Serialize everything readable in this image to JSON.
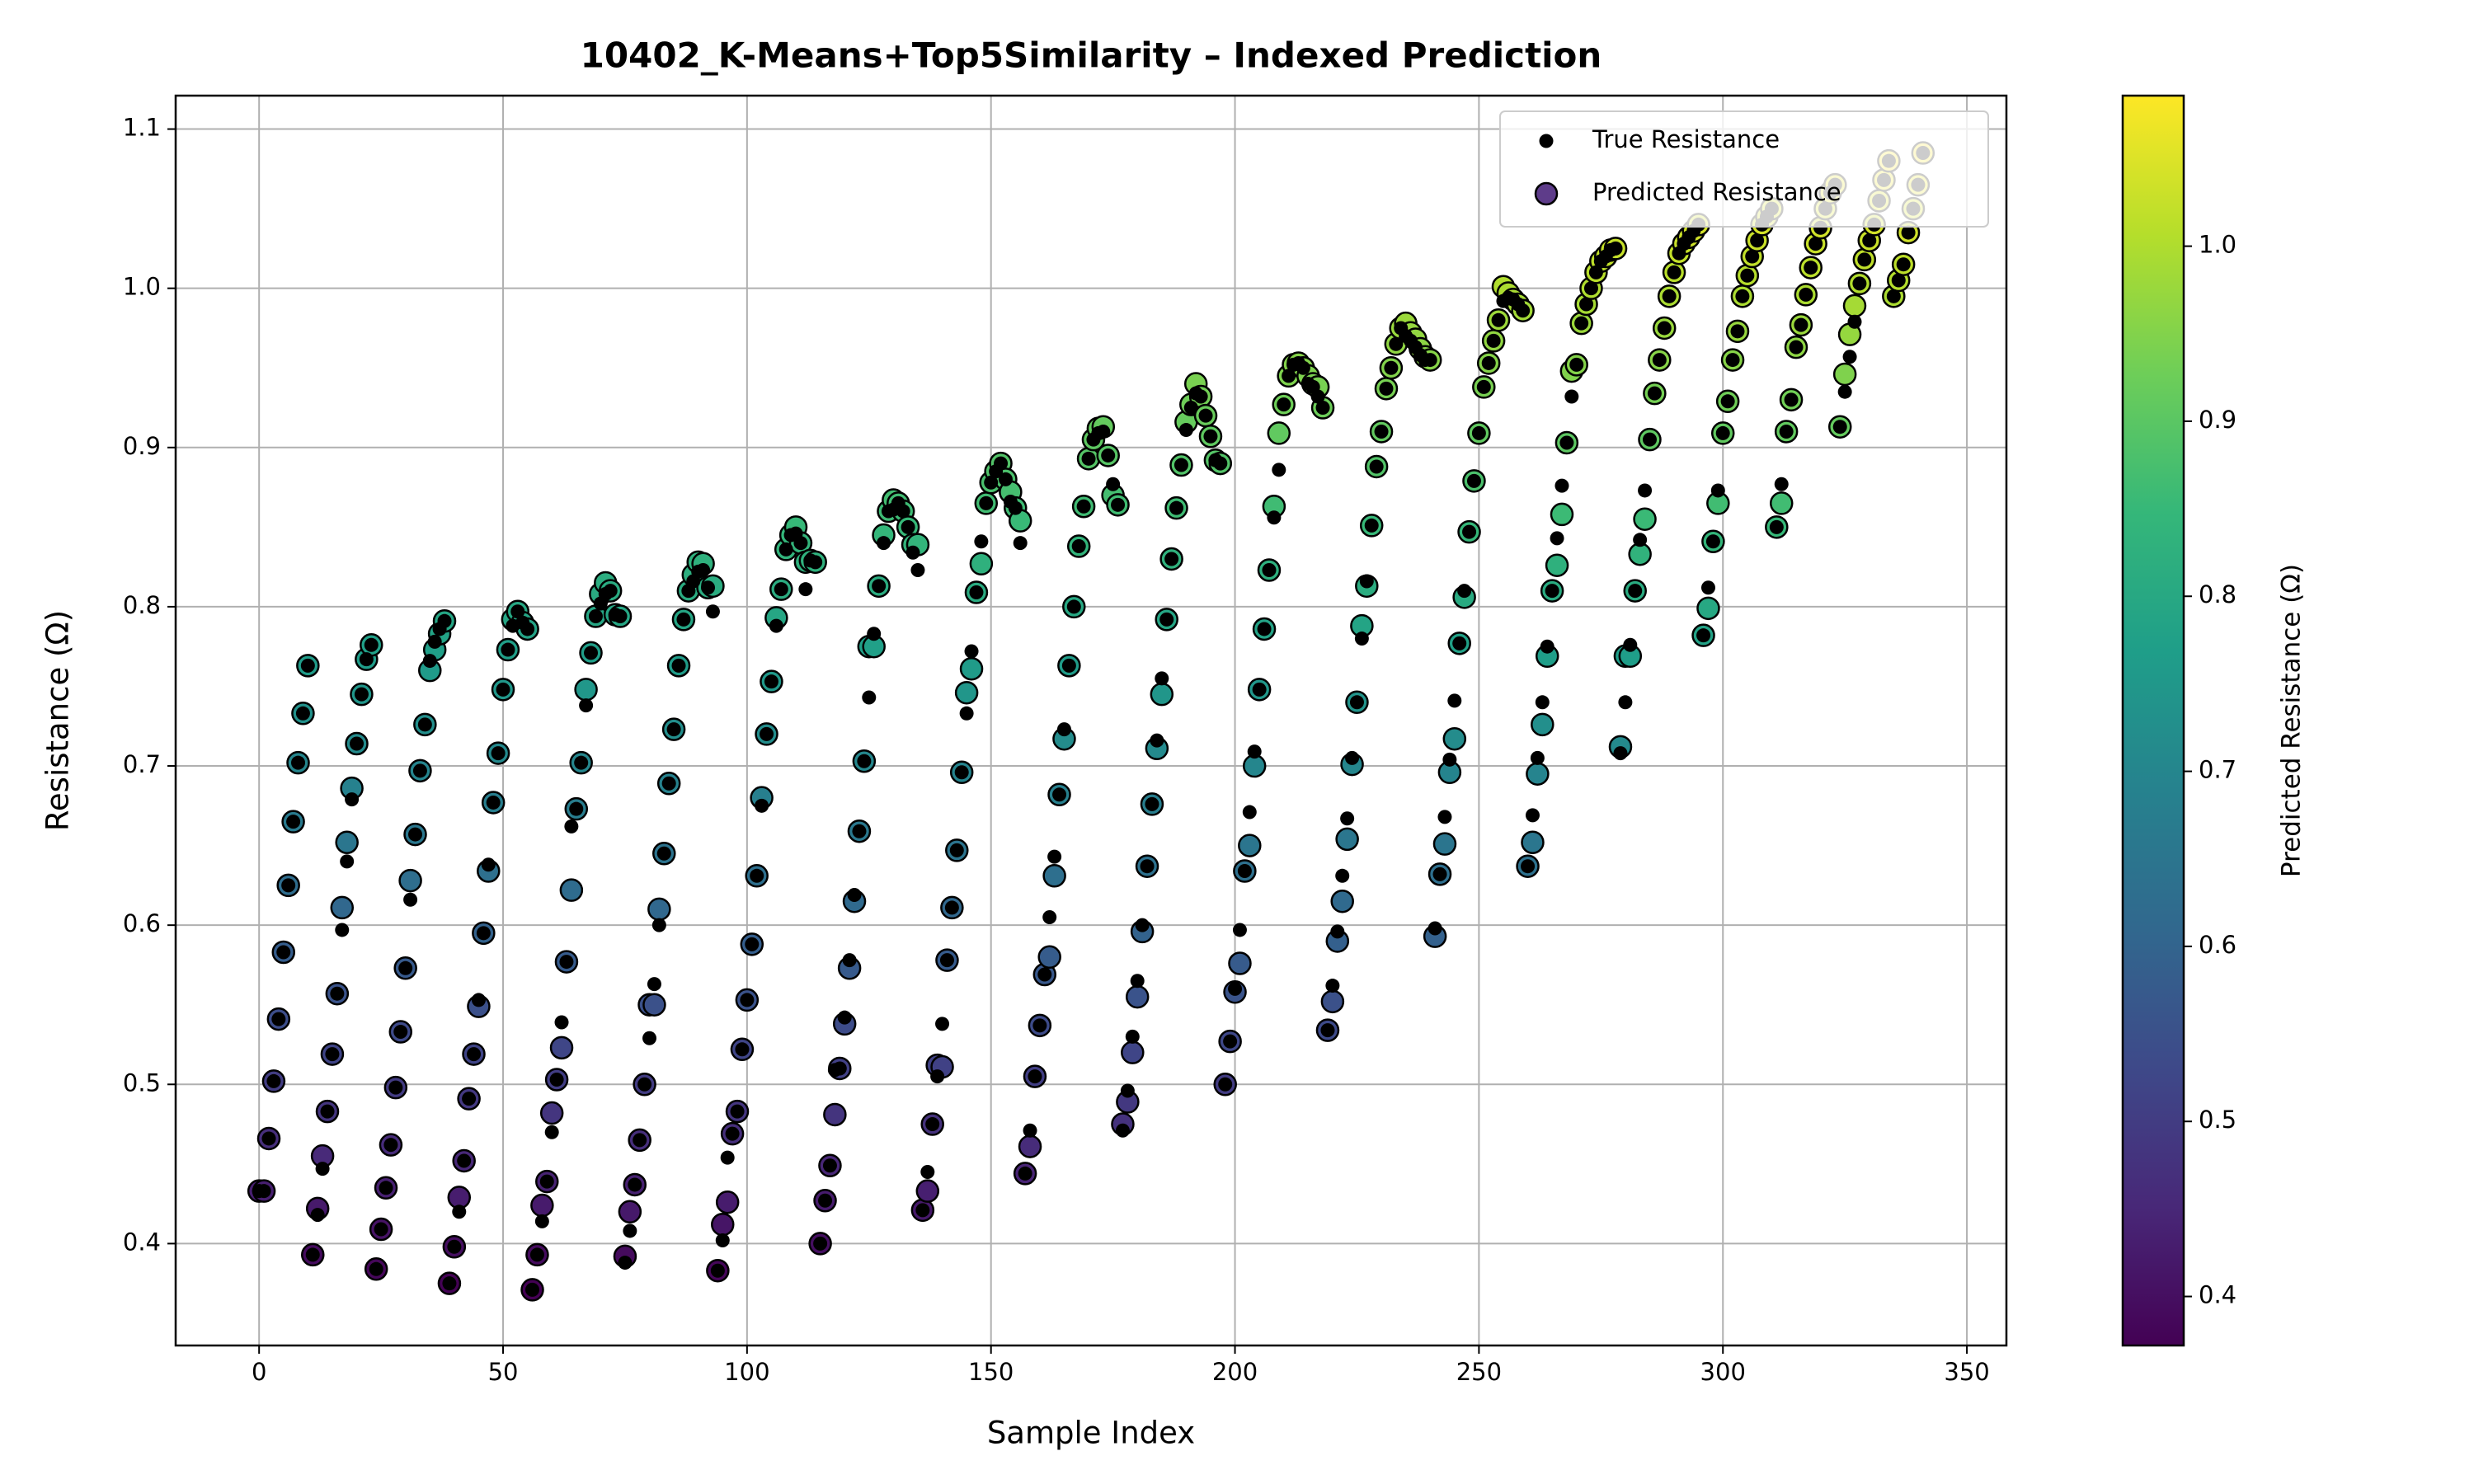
{
  "chart_data": {
    "type": "scatter",
    "title": "10402_K-Means+Top5Similarity – Indexed Prediction",
    "x_label": "Sample Index",
    "y_label": "Resistance (Ω)",
    "colorbar_label": "Predicted Resistance (Ω)",
    "colormap": "viridis",
    "clim": [
      0.372,
      1.086
    ],
    "cticks": [
      0.4,
      0.5,
      0.6,
      0.7,
      0.8,
      0.9,
      {
        "value": 1,
        "label": "1.0"
      }
    ],
    "xlim": [
      -17.1,
      358.1
    ],
    "ylim": [
      0.336,
      1.121
    ],
    "xticks": [
      0,
      50,
      100,
      150,
      200,
      250,
      300,
      350
    ],
    "yticks": [
      0.4,
      0.5,
      0.6,
      0.7,
      0.8,
      0.9,
      {
        "value": 1,
        "label": "1.0"
      },
      1.1
    ],
    "grid": true,
    "legend": "upper right",
    "x": [
      0,
      1,
      2,
      3,
      4,
      5,
      6,
      7,
      8,
      9,
      10,
      11,
      12,
      13,
      14,
      15,
      16,
      17,
      18,
      19,
      20,
      21,
      22,
      23,
      24,
      25,
      26,
      27,
      28,
      29,
      30,
      31,
      32,
      33,
      34,
      35,
      36,
      37,
      38,
      39,
      40,
      41,
      42,
      43,
      44,
      45,
      46,
      47,
      48,
      49,
      50,
      51,
      52,
      53,
      54,
      55,
      56,
      57,
      58,
      59,
      60,
      61,
      62,
      63,
      64,
      65,
      66,
      67,
      68,
      69,
      70,
      71,
      72,
      73,
      74,
      75,
      76,
      77,
      78,
      79,
      80,
      81,
      82,
      83,
      84,
      85,
      86,
      87,
      88,
      89,
      90,
      91,
      92,
      93,
      94,
      95,
      96,
      97,
      98,
      99,
      100,
      101,
      102,
      103,
      104,
      105,
      106,
      107,
      108,
      109,
      110,
      111,
      112,
      113,
      114,
      115,
      116,
      117,
      118,
      119,
      120,
      121,
      122,
      123,
      124,
      125,
      126,
      127,
      128,
      129,
      130,
      131,
      132,
      133,
      134,
      135,
      136,
      137,
      138,
      139,
      140,
      141,
      142,
      143,
      144,
      145,
      146,
      147,
      148,
      149,
      150,
      151,
      152,
      153,
      154,
      155,
      156,
      157,
      158,
      159,
      160,
      161,
      162,
      163,
      164,
      165,
      166,
      167,
      168,
      169,
      170,
      171,
      172,
      173,
      174,
      175,
      176,
      177,
      178,
      179,
      180,
      181,
      182,
      183,
      184,
      185,
      186,
      187,
      188,
      189,
      190,
      191,
      192,
      193,
      194,
      195,
      196,
      197,
      198,
      199,
      200,
      201,
      202,
      203,
      204,
      205,
      206,
      207,
      208,
      209,
      210,
      211,
      212,
      213,
      214,
      215,
      216,
      217,
      218,
      219,
      220,
      221,
      222,
      223,
      224,
      225,
      226,
      227,
      228,
      229,
      230,
      231,
      232,
      233,
      234,
      235,
      236,
      237,
      238,
      239,
      240,
      241,
      242,
      243,
      244,
      245,
      246,
      247,
      248,
      249,
      250,
      251,
      252,
      253,
      254,
      255,
      256,
      257,
      258,
      259,
      260,
      261,
      262,
      263,
      264,
      265,
      266,
      267,
      268,
      269,
      270,
      271,
      272,
      273,
      274,
      275,
      276,
      277,
      278,
      279,
      280,
      281,
      282,
      283,
      284,
      285,
      286,
      287,
      288,
      289,
      290,
      291,
      292,
      293,
      294,
      295,
      296,
      297,
      298,
      299,
      300,
      301,
      302,
      303,
      304,
      305,
      306,
      307,
      308,
      309,
      310,
      311,
      312,
      313,
      314,
      315,
      316,
      317,
      318,
      319,
      320,
      321,
      322,
      323,
      324,
      325,
      326,
      327,
      328,
      329,
      330,
      331,
      332,
      333,
      334,
      335,
      336,
      337,
      338,
      339,
      340,
      341
    ],
    "series": [
      {
        "name": "Predicted Resistance",
        "color": "#5e3c8a",
        "values": [
          0.433,
          0.433,
          0.466,
          0.502,
          0.541,
          0.583,
          0.625,
          0.665,
          0.702,
          0.733,
          0.763,
          0.393,
          0.422,
          0.455,
          0.483,
          0.519,
          0.557,
          0.611,
          0.652,
          0.686,
          0.714,
          0.745,
          0.767,
          0.776,
          0.384,
          0.409,
          0.435,
          0.462,
          0.498,
          0.533,
          0.573,
          0.628,
          0.657,
          0.697,
          0.726,
          0.76,
          0.773,
          0.783,
          0.791,
          0.375,
          0.398,
          0.429,
          0.452,
          0.491,
          0.519,
          0.549,
          0.595,
          0.634,
          0.677,
          0.708,
          0.748,
          0.773,
          0.792,
          0.797,
          0.79,
          0.786,
          0.371,
          0.393,
          0.424,
          0.439,
          0.482,
          0.503,
          0.523,
          0.577,
          0.622,
          0.673,
          0.702,
          0.748,
          0.771,
          0.794,
          0.808,
          0.815,
          0.81,
          0.795,
          0.794,
          0.392,
          0.42,
          0.437,
          0.465,
          0.5,
          0.55,
          0.55,
          0.61,
          0.645,
          0.689,
          0.723,
          0.763,
          0.792,
          0.81,
          0.82,
          0.828,
          0.827,
          0.812,
          0.813,
          0.383,
          0.412,
          0.426,
          0.469,
          0.483,
          0.522,
          0.553,
          0.588,
          0.631,
          0.68,
          0.72,
          0.753,
          0.793,
          0.811,
          0.836,
          0.845,
          0.85,
          0.84,
          0.828,
          0.829,
          0.828,
          0.4,
          0.427,
          0.449,
          0.481,
          0.51,
          0.538,
          0.573,
          0.615,
          0.659,
          0.703,
          0.775,
          0.775,
          0.813,
          0.845,
          0.86,
          0.867,
          0.865,
          0.86,
          0.85,
          0.839,
          0.839,
          0.421,
          0.433,
          0.475,
          0.512,
          0.511,
          0.578,
          0.611,
          0.647,
          0.696,
          0.746,
          0.761,
          0.809,
          0.827,
          0.865,
          0.878,
          0.885,
          0.89,
          0.88,
          0.872,
          0.862,
          0.854,
          0.444,
          0.461,
          0.505,
          0.537,
          0.569,
          0.58,
          0.631,
          0.682,
          0.717,
          0.763,
          0.8,
          0.838,
          0.863,
          0.893,
          0.905,
          0.912,
          0.913,
          0.895,
          0.87,
          0.864,
          0.475,
          0.489,
          0.52,
          0.555,
          0.596,
          0.637,
          0.676,
          0.711,
          0.745,
          0.792,
          0.83,
          0.862,
          0.889,
          0.916,
          0.927,
          0.94,
          0.932,
          0.92,
          0.907,
          0.892,
          0.89,
          0.5,
          0.527,
          0.558,
          0.576,
          0.634,
          0.65,
          0.7,
          0.748,
          0.786,
          0.823,
          0.863,
          0.909,
          0.927,
          0.945,
          0.952,
          0.953,
          0.95,
          0.945,
          0.94,
          0.938,
          0.925,
          0.534,
          0.552,
          0.59,
          0.615,
          0.654,
          0.701,
          0.74,
          0.788,
          0.813,
          0.851,
          0.888,
          0.91,
          0.937,
          0.95,
          0.965,
          0.975,
          0.978,
          0.972,
          0.968,
          0.962,
          0.957,
          0.955,
          0.593,
          0.632,
          0.651,
          0.696,
          0.717,
          0.777,
          0.806,
          0.847,
          0.879,
          0.909,
          0.938,
          0.953,
          0.967,
          0.98,
          1.001,
          0.997,
          0.993,
          0.99,
          0.986,
          0.637,
          0.652,
          0.695,
          0.726,
          0.769,
          0.81,
          0.826,
          0.858,
          0.903,
          0.948,
          0.952,
          0.978,
          0.99,
          1.0,
          1.01,
          1.017,
          1.02,
          1.024,
          1.025,
          0.712,
          0.769,
          0.769,
          0.81,
          0.833,
          0.855,
          0.905,
          0.934,
          0.955,
          0.975,
          0.995,
          1.01,
          1.022,
          1.028,
          1.032,
          1.036,
          1.04,
          0.782,
          0.799,
          0.841,
          0.865,
          0.909,
          0.929,
          0.955,
          0.973,
          0.995,
          1.008,
          1.02,
          1.03,
          1.04,
          1.045,
          1.05,
          0.85,
          0.865,
          0.91,
          0.93,
          0.963,
          0.977,
          0.996,
          1.013,
          1.028,
          1.038,
          1.05,
          1.06,
          1.065,
          0.913,
          0.946,
          0.971,
          0.989,
          1.003,
          1.018,
          1.03,
          1.04,
          1.055,
          1.068,
          1.08,
          0.995,
          1.005,
          1.015,
          1.035,
          1.05,
          1.065,
          1.085
        ]
      },
      {
        "name": "True Resistance",
        "color": "#000000",
        "values": [
          0.433,
          0.433,
          0.466,
          0.502,
          0.541,
          0.583,
          0.625,
          0.665,
          0.702,
          0.733,
          0.763,
          0.393,
          0.418,
          0.447,
          0.483,
          0.519,
          0.557,
          0.597,
          0.64,
          0.679,
          0.714,
          0.745,
          0.767,
          0.776,
          0.384,
          0.409,
          0.435,
          0.462,
          0.498,
          0.533,
          0.573,
          0.616,
          0.657,
          0.697,
          0.726,
          0.766,
          0.778,
          0.786,
          0.791,
          0.375,
          0.398,
          0.42,
          0.452,
          0.491,
          0.519,
          0.553,
          0.595,
          0.638,
          0.677,
          0.708,
          0.748,
          0.773,
          0.788,
          0.797,
          0.79,
          0.786,
          0.371,
          0.393,
          0.414,
          0.439,
          0.47,
          0.503,
          0.539,
          0.577,
          0.662,
          0.673,
          0.702,
          0.738,
          0.771,
          0.794,
          0.802,
          0.808,
          0.81,
          0.795,
          0.794,
          0.388,
          0.408,
          0.437,
          0.465,
          0.5,
          0.529,
          0.563,
          0.6,
          0.645,
          0.689,
          0.723,
          0.763,
          0.792,
          0.81,
          0.816,
          0.822,
          0.823,
          0.812,
          0.797,
          0.383,
          0.402,
          0.454,
          0.469,
          0.483,
          0.522,
          0.553,
          0.588,
          0.631,
          0.675,
          0.72,
          0.753,
          0.788,
          0.811,
          0.836,
          0.845,
          0.846,
          0.84,
          0.811,
          0.829,
          0.828,
          0.4,
          0.427,
          0.449,
          0.509,
          0.51,
          0.542,
          0.578,
          0.619,
          0.659,
          0.703,
          0.743,
          0.783,
          0.813,
          0.84,
          0.86,
          0.861,
          0.865,
          0.86,
          0.85,
          0.834,
          0.823,
          0.421,
          0.445,
          0.475,
          0.505,
          0.538,
          0.578,
          0.611,
          0.647,
          0.696,
          0.733,
          0.772,
          0.809,
          0.841,
          0.865,
          0.878,
          0.885,
          0.89,
          0.88,
          0.866,
          0.862,
          0.84,
          0.444,
          0.471,
          0.505,
          0.537,
          0.569,
          0.605,
          0.643,
          0.682,
          0.723,
          0.763,
          0.8,
          0.838,
          0.863,
          0.893,
          0.905,
          0.909,
          0.91,
          0.895,
          0.877,
          0.864,
          0.471,
          0.496,
          0.53,
          0.565,
          0.6,
          0.637,
          0.676,
          0.716,
          0.755,
          0.792,
          0.83,
          0.862,
          0.889,
          0.911,
          0.925,
          0.934,
          0.932,
          0.92,
          0.907,
          0.892,
          0.89,
          0.5,
          0.527,
          0.56,
          0.597,
          0.634,
          0.671,
          0.709,
          0.748,
          0.786,
          0.823,
          0.856,
          0.886,
          0.927,
          0.945,
          0.952,
          0.953,
          0.95,
          0.94,
          0.938,
          0.932,
          0.925,
          0.534,
          0.562,
          0.596,
          0.631,
          0.667,
          0.705,
          0.74,
          0.78,
          0.816,
          0.851,
          0.888,
          0.91,
          0.937,
          0.95,
          0.965,
          0.975,
          0.97,
          0.967,
          0.963,
          0.958,
          0.955,
          0.955,
          0.598,
          0.632,
          0.668,
          0.704,
          0.741,
          0.777,
          0.81,
          0.847,
          0.879,
          0.909,
          0.938,
          0.953,
          0.967,
          0.98,
          0.992,
          0.994,
          0.993,
          0.99,
          0.986,
          0.637,
          0.669,
          0.705,
          0.74,
          0.775,
          0.81,
          0.843,
          0.876,
          0.903,
          0.932,
          0.952,
          0.978,
          0.99,
          1.0,
          1.01,
          1.017,
          1.02,
          1.024,
          1.025,
          0.708,
          0.74,
          0.776,
          0.81,
          0.842,
          0.873,
          0.905,
          0.934,
          0.955,
          0.975,
          0.995,
          1.01,
          1.022,
          1.028,
          1.032,
          1.036,
          1.04,
          0.782,
          0.812,
          0.841,
          0.873,
          0.909,
          0.929,
          0.955,
          0.973,
          0.995,
          1.008,
          1.02,
          1.03,
          1.04,
          1.045,
          1.05,
          0.85,
          0.877,
          0.91,
          0.93,
          0.963,
          0.977,
          0.996,
          1.013,
          1.028,
          1.038,
          1.05,
          1.06,
          1.065,
          0.913,
          0.935,
          0.957,
          0.979,
          1.003,
          1.018,
          1.03,
          1.04,
          1.055,
          1.068,
          1.08,
          0.995,
          1.005,
          1.015,
          1.035,
          1.05,
          1.065,
          1.085
        ]
      }
    ]
  }
}
